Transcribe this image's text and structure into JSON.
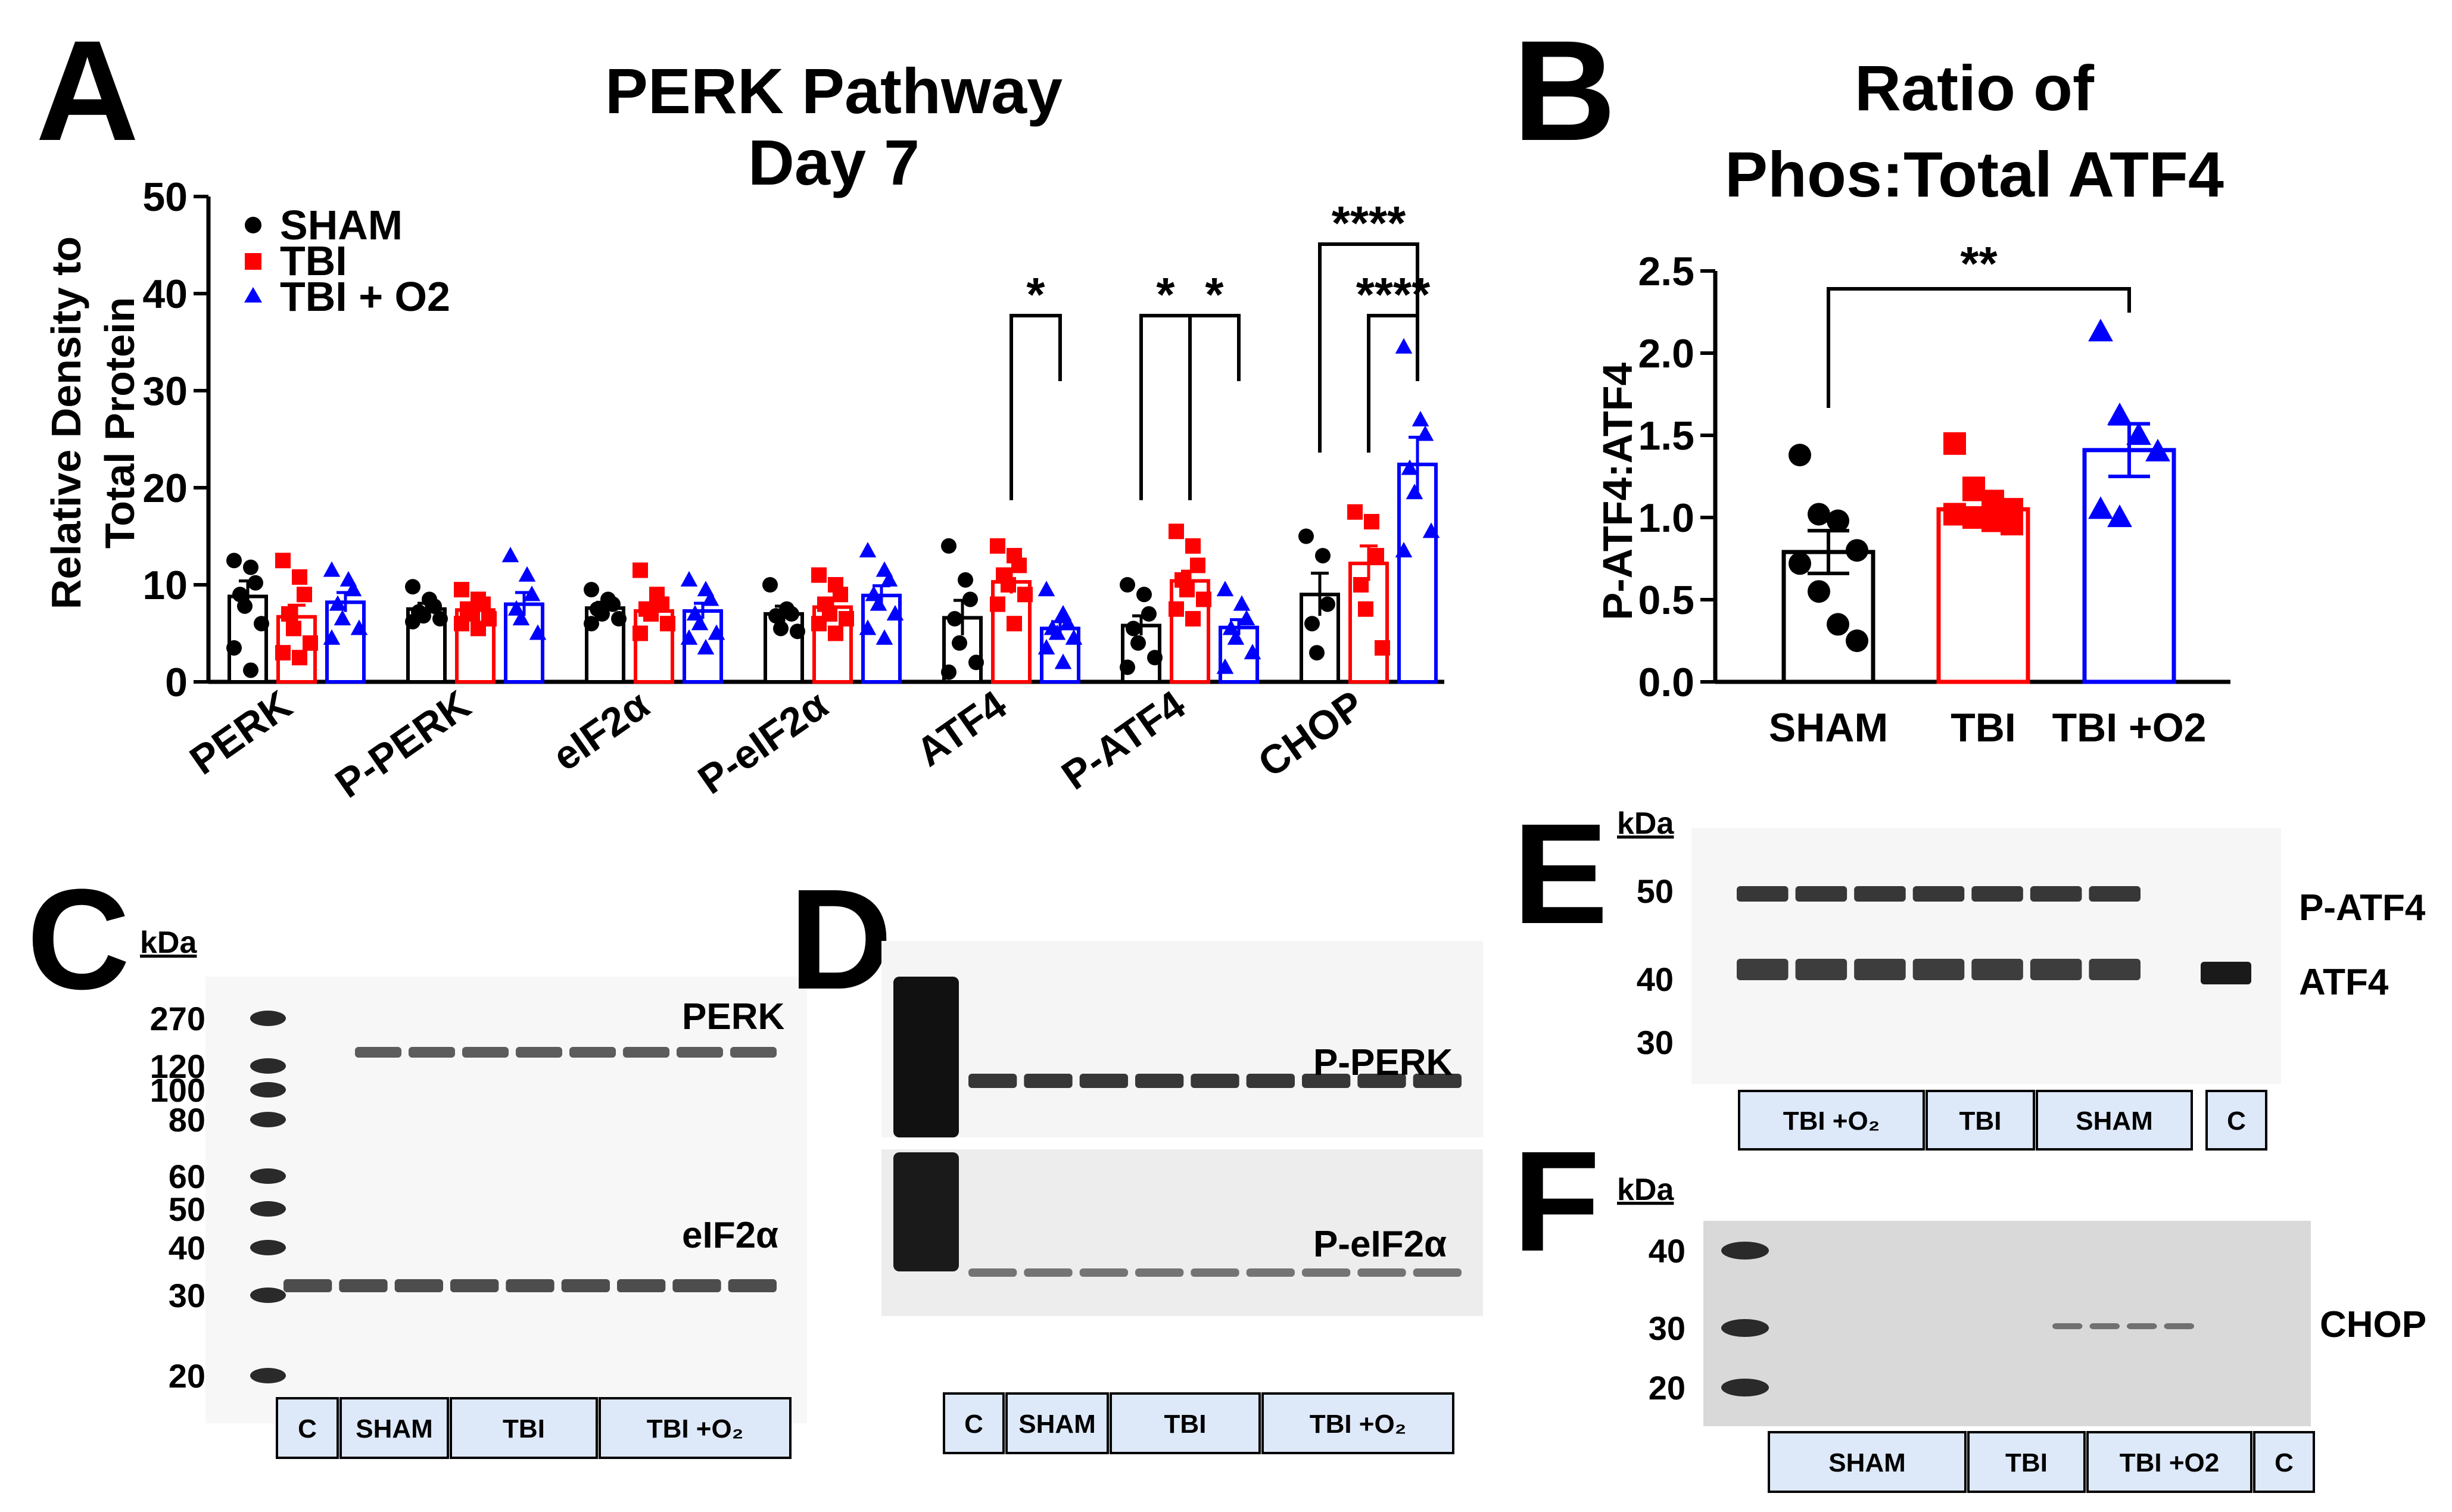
{
  "panels": {
    "A": {
      "letter": "A",
      "title": [
        "PERK Pathway",
        "Day 7"
      ],
      "ylabel": [
        "Relative Density to",
        "Total Protein"
      ],
      "legend": [
        {
          "label": "SHAM",
          "color": "#000000",
          "marker": "circle"
        },
        {
          "label": "TBI",
          "color": "#ff0000",
          "marker": "square"
        },
        {
          "label": "TBI + O2",
          "color": "#0000ff",
          "marker": "triangle"
        }
      ],
      "significance": [
        {
          "group": "ATF4",
          "from": "TBI",
          "to": "TBI + O2",
          "label": "*"
        },
        {
          "group": "P-ATF4",
          "from": "SHAM",
          "to": "TBI",
          "label": "*"
        },
        {
          "group": "P-ATF4",
          "from": "TBI",
          "to": "TBI + O2",
          "label": "*"
        },
        {
          "group": "CHOP",
          "from": "SHAM",
          "to": "TBI + O2",
          "label": "****"
        },
        {
          "group": "CHOP",
          "from": "TBI",
          "to": "TBI + O2",
          "label": "****"
        }
      ]
    },
    "B": {
      "letter": "B",
      "title": [
        "Ratio of",
        "Phos:Total ATF4"
      ],
      "ylabel": "P-ATF4:ATF4",
      "significance": [
        {
          "from": "SHAM",
          "to": "TBI +O2",
          "label": "**"
        }
      ]
    },
    "C": {
      "letter": "C",
      "kda": "kDa",
      "markers": [
        "270",
        "120",
        "100",
        "80",
        "60",
        "50",
        "40",
        "30",
        "20"
      ],
      "bands": [
        "PERK",
        "eIF2α"
      ],
      "lanes": [
        "C",
        "SHAM",
        "TBI",
        "TBI +O₂"
      ]
    },
    "D": {
      "letter": "D",
      "bands": [
        "P-PERK",
        "P-eIF2α"
      ],
      "lanes": [
        "C",
        "SHAM",
        "TBI",
        "TBI +O₂"
      ]
    },
    "E": {
      "letter": "E",
      "kda": "kDa",
      "markers": [
        "50",
        "40",
        "30"
      ],
      "bands": [
        "P-ATF4",
        "ATF4"
      ],
      "lanes": [
        "TBI +O₂",
        "TBI",
        "SHAM",
        "C"
      ]
    },
    "F": {
      "letter": "F",
      "kda": "kDa",
      "markers": [
        "40",
        "30",
        "20"
      ],
      "bands": [
        "CHOP"
      ],
      "lanes": [
        "SHAM",
        "TBI",
        "TBI +O2",
        "C"
      ]
    }
  },
  "chart_data": [
    {
      "type": "bar",
      "title": "PERK Pathway Day 7",
      "ylabel": "Relative Density to Total Protein",
      "xlabel": "",
      "ylim": [
        0,
        50
      ],
      "yticks": [
        0,
        10,
        20,
        30,
        40,
        50
      ],
      "categories": [
        "PERK",
        "P-PERK",
        "eIF2α",
        "P-eIF2α",
        "ATF4",
        "P-ATF4",
        "CHOP"
      ],
      "series": [
        {
          "name": "SHAM",
          "color": "#000000",
          "values": [
            8.8,
            7.5,
            7.6,
            7.0,
            6.6,
            5.8,
            9.0
          ],
          "sem": [
            1.6,
            0.6,
            0.6,
            0.8,
            1.8,
            1.0,
            2.2
          ],
          "points": [
            [
              12.5,
              11.8,
              10.2,
              9.0,
              7.8,
              6.0,
              3.5,
              1.2
            ],
            [
              9.8,
              8.5,
              7.8,
              7.2,
              6.8,
              6.5,
              6.2
            ],
            [
              9.5,
              8.5,
              8.0,
              7.5,
              7.0,
              6.5,
              6.0
            ],
            [
              10.0,
              7.5,
              7.0,
              6.8,
              5.5,
              5.2
            ],
            [
              14.0,
              10.5,
              8.5,
              6.5,
              4.0,
              2.0,
              1.0
            ],
            [
              10.0,
              9.0,
              7.0,
              5.5,
              4.0,
              2.5,
              1.5
            ],
            [
              15.0,
              13.0,
              8.0,
              6.0,
              3.0
            ]
          ]
        },
        {
          "name": "TBI",
          "color": "#ff0000",
          "values": [
            6.7,
            7.4,
            7.3,
            7.7,
            10.3,
            10.4,
            12.2
          ],
          "sem": [
            1.2,
            0.6,
            0.8,
            0.9,
            1.2,
            1.0,
            1.8
          ],
          "points": [
            [
              12.5,
              10.8,
              9.0,
              7.0,
              5.5,
              4.0,
              3.0,
              2.5
            ],
            [
              9.5,
              8.5,
              8.0,
              7.5,
              7.0,
              6.5,
              6.0,
              5.5
            ],
            [
              11.5,
              9.0,
              8.0,
              7.5,
              7.0,
              6.0,
              5.0
            ],
            [
              11.0,
              10.0,
              9.0,
              8.0,
              7.0,
              6.5,
              6.0,
              5.0
            ],
            [
              14.0,
              13.0,
              12.0,
              11.0,
              10.0,
              9.0,
              8.0,
              6.0
            ],
            [
              15.5,
              14.0,
              12.0,
              10.5,
              9.5,
              8.5,
              7.5,
              6.5
            ],
            [
              17.5,
              16.5,
              13.0,
              10.0,
              7.5,
              3.5
            ]
          ]
        },
        {
          "name": "TBI + O2",
          "color": "#0000ff",
          "values": [
            8.2,
            8.0,
            7.3,
            8.9,
            5.5,
            5.6,
            22.4
          ],
          "sem": [
            1.0,
            1.2,
            0.8,
            1.0,
            0.7,
            0.8,
            2.8
          ],
          "points": [
            [
              11.5,
              10.5,
              9.5,
              8.0,
              6.5,
              5.5,
              4.5
            ],
            [
              13.0,
              11.0,
              9.0,
              7.5,
              6.5,
              5.0
            ],
            [
              10.5,
              9.5,
              8.5,
              7.0,
              6.0,
              5.0,
              4.5,
              3.5
            ],
            [
              13.5,
              11.5,
              10.5,
              9.0,
              8.0,
              7.0,
              5.5,
              4.5
            ],
            [
              9.5,
              7.0,
              6.0,
              5.5,
              5.0,
              4.5,
              3.5,
              2.0
            ],
            [
              9.5,
              8.0,
              6.5,
              5.5,
              4.5,
              3.0,
              1.5
            ],
            [
              34.5,
              27.0,
              25.5,
              22.0,
              19.5,
              15.5,
              13.5
            ]
          ]
        }
      ]
    },
    {
      "type": "bar",
      "title": "Ratio of Phos:Total ATF4",
      "ylabel": "P-ATF4:ATF4",
      "xlabel": "",
      "ylim": [
        0,
        2.5
      ],
      "yticks": [
        0.0,
        0.5,
        1.0,
        1.5,
        2.0,
        2.5
      ],
      "categories": [
        "SHAM",
        "TBI",
        "TBI +O2"
      ],
      "colors": [
        "#000000",
        "#ff0000",
        "#0000ff"
      ],
      "values": [
        0.79,
        1.05,
        1.41
      ],
      "sem": [
        0.13,
        0.06,
        0.16
      ],
      "points": [
        [
          1.38,
          1.02,
          0.98,
          0.8,
          0.72,
          0.55,
          0.35,
          0.25
        ],
        [
          1.45,
          1.18,
          1.1,
          1.05,
          1.02,
          1.0,
          0.98,
          0.96
        ],
        [
          2.13,
          1.62,
          1.5,
          1.4,
          1.05,
          1.0
        ]
      ]
    }
  ]
}
